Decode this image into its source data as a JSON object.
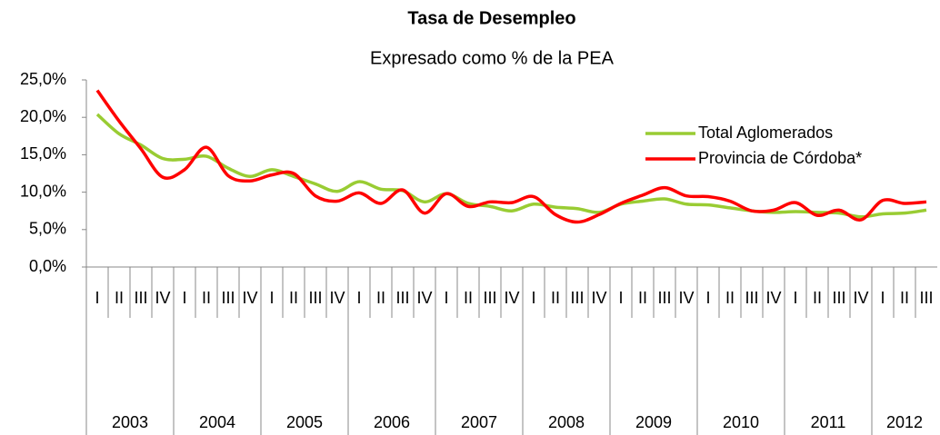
{
  "chart_data": {
    "type": "line",
    "title": "Tasa de Desempleo",
    "subtitle": "Expresado como % de la PEA",
    "categories": [
      "I",
      "II",
      "III",
      "IV",
      "I",
      "II",
      "III",
      "IV",
      "I",
      "II",
      "III",
      "IV",
      "I",
      "II",
      "III",
      "IV",
      "I",
      "II",
      "III",
      "IV",
      "I",
      "II",
      "III",
      "IV",
      "I",
      "II",
      "III",
      "IV",
      "I",
      "II",
      "III",
      "IV",
      "I",
      "II",
      "III",
      "IV",
      "I",
      "II",
      "III"
    ],
    "year_groups": [
      "2003",
      "2004",
      "2005",
      "2006",
      "2007",
      "2008",
      "2009",
      "2010",
      "2011",
      "2012"
    ],
    "series": [
      {
        "name": "Total Aglomerados",
        "color": "#99cc33",
        "values": [
          20.4,
          17.8,
          16.3,
          14.5,
          14.4,
          14.8,
          13.2,
          12.1,
          13.0,
          12.1,
          11.1,
          10.1,
          11.4,
          10.4,
          10.2,
          8.7,
          9.8,
          8.5,
          8.1,
          7.5,
          8.4,
          8.0,
          7.8,
          7.3,
          8.4,
          8.8,
          9.1,
          8.4,
          8.3,
          7.9,
          7.5,
          7.3,
          7.4,
          7.3,
          7.2,
          6.7,
          7.1,
          7.2,
          7.6
        ]
      },
      {
        "name": "Provincia de Córdoba*",
        "color": "#ff0000",
        "values": [
          23.6,
          19.5,
          15.8,
          12.0,
          13.0,
          16.0,
          12.2,
          11.5,
          12.3,
          12.5,
          9.5,
          8.8,
          9.9,
          8.5,
          10.3,
          7.2,
          9.8,
          8.1,
          8.7,
          8.6,
          9.4,
          7.0,
          6.0,
          7.0,
          8.5,
          9.6,
          10.6,
          9.5,
          9.4,
          8.8,
          7.5,
          7.6,
          8.6,
          6.9,
          7.6,
          6.3,
          8.9,
          8.5,
          8.7
        ]
      }
    ],
    "ylim": [
      0,
      25
    ],
    "yticks": [
      {
        "value": 0,
        "label": "0,0%"
      },
      {
        "value": 5,
        "label": "5,0%"
      },
      {
        "value": 10,
        "label": "10,0%"
      },
      {
        "value": 15,
        "label": "15,0%"
      },
      {
        "value": 20,
        "label": "20,0%"
      },
      {
        "value": 25,
        "label": "25,0%"
      }
    ]
  }
}
